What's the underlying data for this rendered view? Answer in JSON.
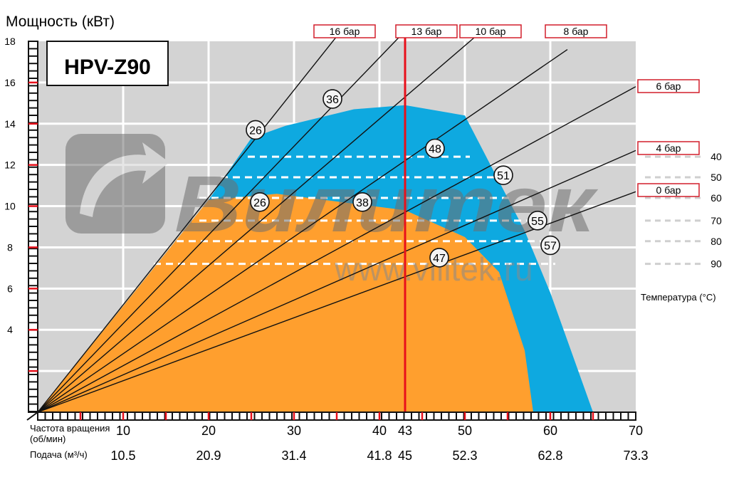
{
  "chart_data": {
    "type": "line",
    "title": "HPV-Z90",
    "ylabel": "Мощность (кВт)",
    "xlim": [
      0,
      70
    ],
    "ylim": [
      0,
      18
    ],
    "x_ticks": [
      "10",
      "20",
      "30",
      "40",
      "43",
      "50",
      "60",
      "70"
    ],
    "x_tick_values": [
      10,
      20,
      30,
      40,
      43,
      50,
      60,
      70
    ],
    "y_ticks": [
      "4",
      "6",
      "8",
      "10",
      "12",
      "14",
      "16",
      "18"
    ],
    "y_tick_values": [
      4,
      6,
      8,
      10,
      12,
      14,
      16,
      18
    ],
    "xlabel_rpm": "Частота вращения",
    "xlabel_rpm_unit": "(об/мин)",
    "xlabel_flow": "Подача (м³/ч)",
    "flow_ticks": [
      "10.5",
      "20.9",
      "31.4",
      "41.8",
      "45",
      "52.3",
      "62.8",
      "73.3"
    ],
    "temperature_label": "Температура (°С)",
    "temperatures": [
      "40",
      "50",
      "60",
      "70",
      "80",
      "90"
    ],
    "temperature_levels": [
      12.4,
      11.4,
      10.4,
      9.3,
      8.3,
      7.2
    ],
    "grid": true,
    "rated_speed": 43,
    "pressure_lines": [
      {
        "label": "16 бар",
        "end": [
          35.5,
          18.5
        ]
      },
      {
        "label": "13 бар",
        "end": [
          43,
          18.5
        ]
      },
      {
        "label": "10 бар",
        "end": [
          52,
          18.5
        ]
      },
      {
        "label": "8 бар",
        "end": [
          62,
          17.6
        ]
      },
      {
        "label": "6 бар",
        "end": [
          70,
          15.8
        ]
      },
      {
        "label": "4 бар",
        "end": [
          70,
          12.7
        ]
      },
      {
        "label": "0 бар",
        "end": [
          70,
          10.7
        ]
      }
    ],
    "max_power_envelope": [
      [
        0,
        0
      ],
      [
        20,
        10.3
      ],
      [
        25,
        13.3
      ],
      [
        29,
        13.9
      ],
      [
        37,
        14.7
      ],
      [
        43,
        14.9
      ],
      [
        50,
        14.4
      ],
      [
        53,
        12.0
      ],
      [
        57,
        8.8
      ],
      [
        60,
        5.8
      ],
      [
        65,
        0
      ]
    ],
    "continuous_envelope": [
      [
        0,
        0
      ],
      [
        20,
        10.3
      ],
      [
        28,
        10.6
      ],
      [
        43,
        9.8
      ],
      [
        50,
        8.5
      ],
      [
        54,
        6.8
      ],
      [
        57,
        3.0
      ],
      [
        58,
        0
      ]
    ],
    "markers": [
      {
        "label": "26",
        "x": 25.5,
        "y": 13.7
      },
      {
        "label": "36",
        "x": 34.5,
        "y": 15.2
      },
      {
        "label": "48",
        "x": 46.5,
        "y": 12.8
      },
      {
        "label": "51",
        "x": 54.5,
        "y": 11.5
      },
      {
        "label": "26",
        "x": 26,
        "y": 10.2
      },
      {
        "label": "38",
        "x": 38,
        "y": 10.2
      },
      {
        "label": "55",
        "x": 58.5,
        "y": 9.3
      },
      {
        "label": "57",
        "x": 60,
        "y": 8.1
      },
      {
        "label": "47",
        "x": 47,
        "y": 7.5
      }
    ],
    "colors": {
      "max": "#0ea9e0",
      "continuous": "#ff9f2e",
      "plot_bg": "#d3d3d3",
      "rated_line": "#e8101b",
      "box_border": "#d21f2b"
    }
  },
  "watermark": {
    "brand": "Вилитек",
    "url": "www.vilitek.ru"
  }
}
